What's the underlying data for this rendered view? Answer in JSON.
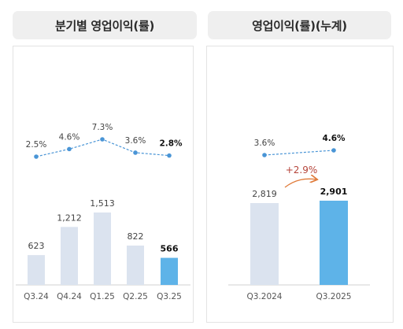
{
  "colors": {
    "bar": "#dbe3ef",
    "bar_highlight": "#5eb3e8",
    "line": "#4a95d6",
    "growth_text": "#b5443a",
    "growth_arrow": "#e07b3a",
    "label": "#444444",
    "label_highlight": "#111111"
  },
  "chart_data": [
    {
      "type": "bar+line",
      "title": "분기별 영업이익(률)",
      "categories": [
        "Q3.24",
        "Q4.24",
        "Q1.25",
        "Q2.25",
        "Q3.25"
      ],
      "series": [
        {
          "kind": "bar",
          "values": [
            623,
            1212,
            1513,
            822,
            566
          ],
          "labels": [
            "623",
            "1,212",
            "1,513",
            "822",
            "566"
          ]
        },
        {
          "kind": "line",
          "style": "dashed",
          "values": [
            2.5,
            4.6,
            7.3,
            3.6,
            2.8
          ],
          "labels": [
            "2.5%",
            "4.6%",
            "7.3%",
            "3.6%",
            "2.8%"
          ]
        }
      ],
      "highlight_index": 4,
      "bar_ylim": [
        0,
        1600
      ],
      "line_ylim": [
        0,
        10
      ],
      "grid": false
    },
    {
      "type": "bar+line",
      "title": "영업이익(률)(누계)",
      "categories": [
        "Q3.2024",
        "Q3.2025"
      ],
      "series": [
        {
          "kind": "bar",
          "values": [
            2819,
            2901
          ],
          "labels": [
            "2,819",
            "2,901"
          ]
        },
        {
          "kind": "line",
          "style": "dashed",
          "values": [
            3.6,
            4.6
          ],
          "labels": [
            "3.6%",
            "4.6%"
          ]
        }
      ],
      "highlight_index": 1,
      "annotation": "+2.9%",
      "bar_ylim": [
        0,
        3000
      ],
      "line_ylim": [
        0,
        10
      ],
      "grid": false
    }
  ]
}
